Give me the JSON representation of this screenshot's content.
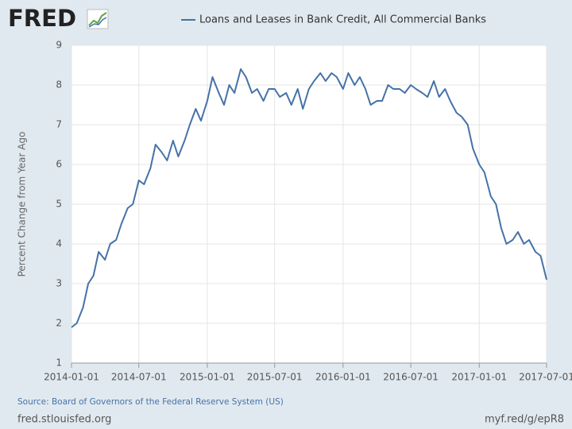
{
  "logo": "FRED",
  "chart_data": {
    "type": "line",
    "series": [
      {
        "name": "Loans and Leases in Bank Credit, All Commercial Banks",
        "color": "#4572a7",
        "values": [
          1.9,
          2.0,
          2.4,
          3.0,
          3.2,
          3.8,
          3.6,
          4.0,
          4.1,
          4.5,
          4.9,
          5.0,
          5.6,
          5.5,
          5.9,
          6.5,
          6.3,
          6.1,
          6.6,
          6.2,
          6.6,
          7.0,
          7.4,
          7.1,
          7.6,
          8.2,
          7.8,
          7.5,
          8.0,
          7.8,
          8.4,
          8.2,
          7.8,
          7.9,
          7.6,
          7.9,
          7.9,
          7.7,
          7.8,
          7.5,
          7.9,
          7.4,
          7.9,
          8.1,
          8.3,
          8.1,
          8.3,
          8.2,
          7.9,
          8.3,
          8.0,
          8.2,
          7.9,
          7.5,
          7.6,
          7.6,
          8.0,
          7.9,
          7.9,
          7.8,
          8.0,
          7.9,
          7.8,
          7.7,
          8.1,
          7.7,
          7.9,
          7.6,
          7.3,
          7.2,
          7.0,
          6.4,
          6.0,
          5.8,
          5.2,
          5.0,
          4.4,
          4.0,
          4.1,
          4.3,
          4.0,
          4.1,
          3.8,
          3.7,
          3.1
        ]
      }
    ],
    "x": [
      "2014-01-01",
      "2014-01-15",
      "2014-02-01",
      "2014-02-15",
      "2014-03-01",
      "2014-03-15",
      "2014-04-01",
      "2014-04-15",
      "2014-05-01",
      "2014-05-15",
      "2014-06-01",
      "2014-06-15",
      "2014-07-01",
      "2014-07-15",
      "2014-08-01",
      "2014-08-15",
      "2014-09-01",
      "2014-09-15",
      "2014-10-01",
      "2014-10-15",
      "2014-11-01",
      "2014-11-15",
      "2014-12-01",
      "2014-12-15",
      "2015-01-01",
      "2015-01-15",
      "2015-02-01",
      "2015-02-15",
      "2015-03-01",
      "2015-03-15",
      "2015-04-01",
      "2015-04-15",
      "2015-05-01",
      "2015-05-15",
      "2015-06-01",
      "2015-06-15",
      "2015-07-01",
      "2015-07-15",
      "2015-08-01",
      "2015-08-15",
      "2015-09-01",
      "2015-09-15",
      "2015-10-01",
      "2015-10-15",
      "2015-11-01",
      "2015-11-15",
      "2015-12-01",
      "2015-12-15",
      "2016-01-01",
      "2016-01-15",
      "2016-02-01",
      "2016-02-15",
      "2016-03-01",
      "2016-03-15",
      "2016-04-01",
      "2016-04-15",
      "2016-05-01",
      "2016-05-15",
      "2016-06-01",
      "2016-06-15",
      "2016-07-01",
      "2016-07-15",
      "2016-08-01",
      "2016-08-15",
      "2016-09-01",
      "2016-09-15",
      "2016-10-01",
      "2016-10-15",
      "2016-11-01",
      "2016-11-15",
      "2016-12-01",
      "2016-12-15",
      "2017-01-01",
      "2017-01-15",
      "2017-02-01",
      "2017-02-15",
      "2017-03-01",
      "2017-03-15",
      "2017-04-01",
      "2017-04-15",
      "2017-05-01",
      "2017-05-15",
      "2017-06-01",
      "2017-06-15",
      "2017-07-01"
    ],
    "xlim": [
      "2014-01-01",
      "2017-07-01"
    ],
    "xticks": [
      "2014-01-01",
      "2014-07-01",
      "2015-01-01",
      "2015-07-01",
      "2016-01-01",
      "2016-07-01",
      "2017-01-01",
      "2017-07-01"
    ],
    "ylim": [
      1,
      9
    ],
    "yticks": [
      1,
      2,
      3,
      4,
      5,
      6,
      7,
      8,
      9
    ],
    "ylabel": "Percent Change from Year Ago",
    "grid": true,
    "source": "Source: Board of Governors of the Federal Reserve System (US)",
    "footer_left": "fred.stlouisfed.org",
    "footer_right": "myf.red/g/epR8"
  }
}
